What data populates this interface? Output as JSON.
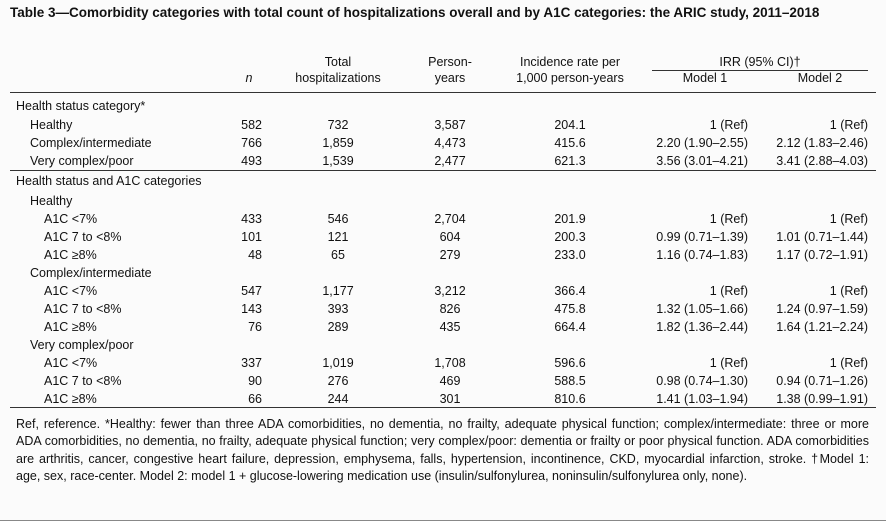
{
  "header": {
    "title": "Table 3—Comorbidity categories with total count of hospitalizations overall and by A1C categories: the ARIC study, 2011–2018"
  },
  "table": {
    "columns": [
      [
        "n"
      ],
      [
        "Total",
        "hospitalizations"
      ],
      [
        "Person-",
        "years"
      ],
      [
        "Incidence rate per",
        "1,000 person-years"
      ],
      [
        "Model 1"
      ],
      [
        "Model 2"
      ]
    ],
    "group_header": "IRR (95% CI)†",
    "rows": [
      {
        "label": "Health status category*"
      },
      {
        "label": "Healthy",
        "cells": [
          "582",
          "732",
          "3,587",
          "204.1",
          "1 (Ref)",
          "1 (Ref)"
        ]
      },
      {
        "label": "Complex/intermediate",
        "cells": [
          "766",
          "1,859",
          "4,473",
          "415.6",
          "2.20 (1.90–2.55)",
          "2.12 (1.83–2.46)"
        ]
      },
      {
        "label": "Very complex/poor",
        "cells": [
          "493",
          "1,539",
          "2,477",
          "621.3",
          "3.56 (3.01–4.21)",
          "3.41 (2.88–4.03)"
        ]
      },
      {
        "label": "Health status and A1C categories"
      },
      {
        "label": "Healthy"
      },
      {
        "label": "A1C <7%",
        "cells": [
          "433",
          "546",
          "2,704",
          "201.9",
          "1 (Ref)",
          "1 (Ref)"
        ]
      },
      {
        "label": "A1C 7 to <8%",
        "cells": [
          "101",
          "121",
          "604",
          "200.3",
          "0.99 (0.71–1.39)",
          "1.01 (0.71–1.44)"
        ]
      },
      {
        "label": "A1C ≥8%",
        "cells": [
          "48",
          "65",
          "279",
          "233.0",
          "1.16 (0.74–1.83)",
          "1.17 (0.72–1.91)"
        ]
      },
      {
        "label": "Complex/intermediate"
      },
      {
        "label": "A1C <7%",
        "cells": [
          "547",
          "1,177",
          "3,212",
          "366.4",
          "1 (Ref)",
          "1 (Ref)"
        ]
      },
      {
        "label": "A1C 7 to <8%",
        "cells": [
          "143",
          "393",
          "826",
          "475.8",
          "1.32 (1.05–1.66)",
          "1.24 (0.97–1.59)"
        ]
      },
      {
        "label": "A1C ≥8%",
        "cells": [
          "76",
          "289",
          "435",
          "664.4",
          "1.82 (1.36–2.44)",
          "1.64 (1.21–2.24)"
        ]
      },
      {
        "label": "Very complex/poor"
      },
      {
        "label": "A1C <7%",
        "cells": [
          "337",
          "1,019",
          "1,708",
          "596.6",
          "1 (Ref)",
          "1 (Ref)"
        ]
      },
      {
        "label": "A1C 7 to <8%",
        "cells": [
          "90",
          "276",
          "469",
          "588.5",
          "0.98 (0.74–1.30)",
          "0.94 (0.71–1.26)"
        ]
      },
      {
        "label": "A1C ≥8%",
        "cells": [
          "66",
          "244",
          "301",
          "810.6",
          "1.41 (1.03–1.94)",
          "1.38 (0.99–1.91)"
        ]
      }
    ]
  },
  "footnote": "Ref, reference. *Healthy: fewer than three ADA comorbidities, no dementia, no frailty, adequate physical function; complex/intermediate: three or more ADA comorbidities, no dementia, no frailty, adequate physical function; very complex/poor: dementia or frailty or poor physical function. ADA comorbidities are arthritis, cancer, congestive heart failure, depression, emphysema, falls, hypertension, incontinence, CKD, myocardial infarction, stroke. †Model 1: age, sex, race-center. Model 2: model 1 + glucose-lowering medication use (insulin/sulfonylurea, noninsulin/sulfonylurea only, none)."
}
